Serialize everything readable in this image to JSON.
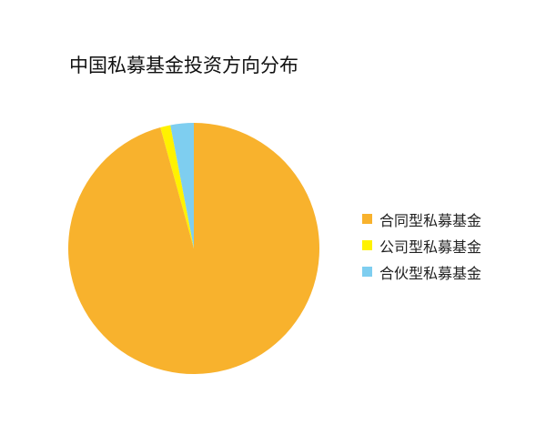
{
  "chart_data": {
    "type": "pie",
    "title": "中国私募基金投资方向分布",
    "start": "12 o'clock, counterclockwise",
    "slices": [
      {
        "name": "合伙型私募基金",
        "value": 3.0,
        "color": "#7ECEF0"
      },
      {
        "name": "公司型私募基金",
        "value": 1.3,
        "color": "#FFF200"
      },
      {
        "name": "合同型私募基金",
        "value": 95.7,
        "color": "#F8B22D"
      }
    ],
    "legend": {
      "placement": "right",
      "order": [
        "合同型私募基金",
        "公司型私募基金",
        "合伙型私募基金"
      ]
    }
  }
}
